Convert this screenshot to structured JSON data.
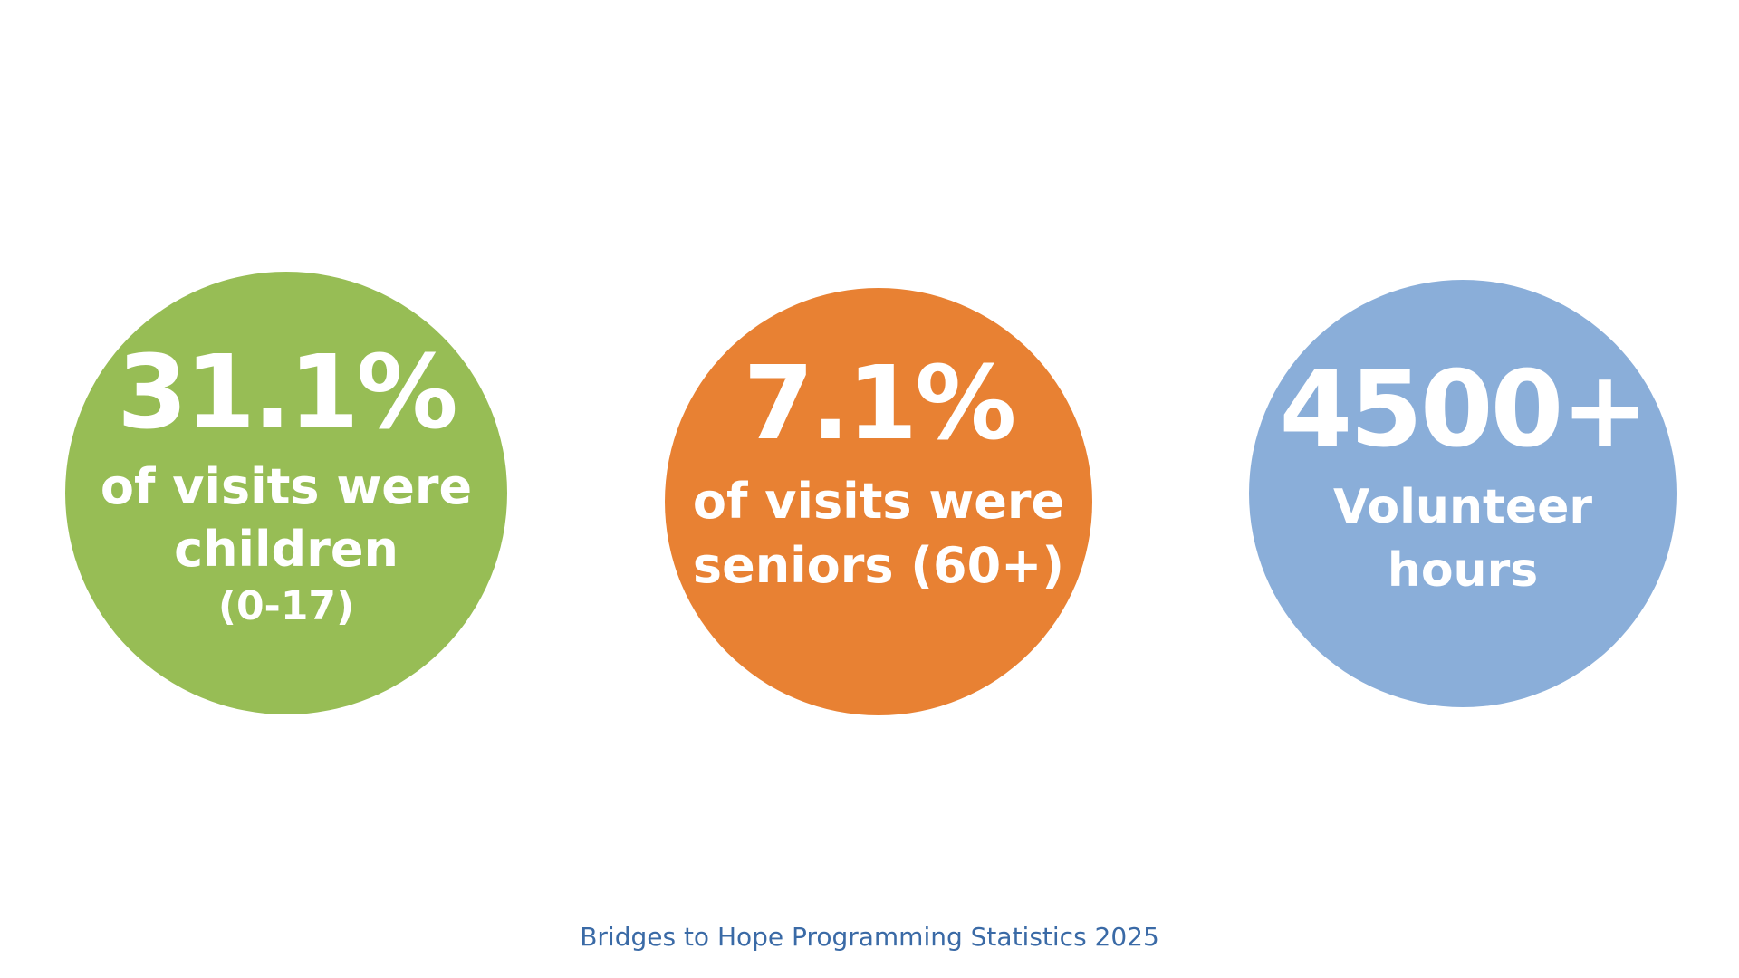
{
  "stats": [
    {
      "value": "31.1%",
      "lines": [
        "of visits were",
        "children",
        "(0-17)"
      ],
      "color": "#97bd55"
    },
    {
      "value": "7.1%",
      "lines": [
        "of visits were",
        "seniors (60+)"
      ],
      "color": "#e88133"
    },
    {
      "value": "4500+",
      "lines": [
        "Volunteer",
        "hours"
      ],
      "color": "#8aaed9"
    }
  ],
  "footer": {
    "text": "Bridges to Hope Programming Statistics 2025",
    "color": "#3a6aa6"
  },
  "colors": {
    "background": "#ffffff",
    "stat_text": "#ffffff"
  }
}
